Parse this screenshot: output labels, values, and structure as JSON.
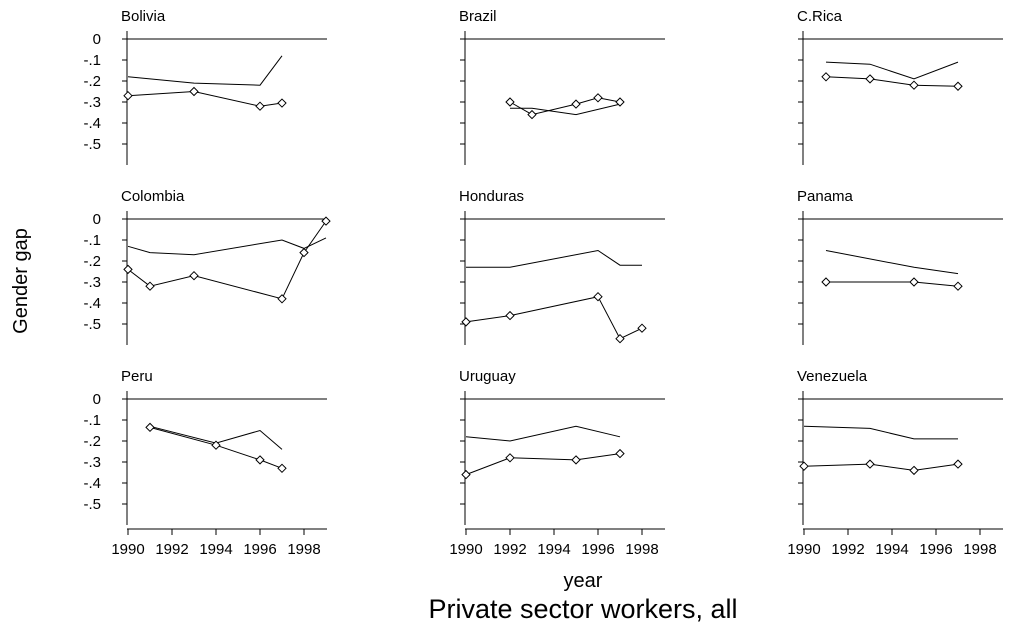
{
  "chart_data": {
    "type": "line",
    "title": "Private sector workers, all",
    "xlabel": "year",
    "ylabel": "Gender gap",
    "xlim": [
      1990,
      1999
    ],
    "ylim": [
      -0.6,
      0.05
    ],
    "x_ticks": [
      1990,
      1992,
      1994,
      1996,
      1998
    ],
    "x_tick_labels": [
      "1990",
      "1992",
      "1994",
      "1996",
      "1998"
    ],
    "y_ticks": [
      0,
      -0.1,
      -0.2,
      -0.3,
      -0.4,
      -0.5
    ],
    "y_tick_labels": [
      "0",
      "-.1",
      "-.2",
      "-.3",
      "-.4",
      "-.5"
    ],
    "reference_line": 0,
    "grid": false,
    "panels": [
      {
        "name": "Bolivia",
        "series": [
          {
            "marker": "none",
            "points": [
              [
                1990,
                -0.18
              ],
              [
                1993,
                -0.21
              ],
              [
                1996,
                -0.22
              ],
              [
                1997,
                -0.08
              ]
            ]
          },
          {
            "marker": "diamond",
            "points": [
              [
                1990,
                -0.27
              ],
              [
                1993,
                -0.25
              ],
              [
                1996,
                -0.32
              ],
              [
                1997,
                -0.305
              ]
            ]
          }
        ]
      },
      {
        "name": "Brazil",
        "series": [
          {
            "marker": "none",
            "points": [
              [
                1992,
                -0.33
              ],
              [
                1993,
                -0.33
              ],
              [
                1995,
                -0.36
              ],
              [
                1997,
                -0.31
              ]
            ]
          },
          {
            "marker": "diamond",
            "points": [
              [
                1992,
                -0.3
              ],
              [
                1993,
                -0.36
              ],
              [
                1995,
                -0.31
              ],
              [
                1996,
                -0.28
              ],
              [
                1997,
                -0.3
              ]
            ]
          }
        ]
      },
      {
        "name": "C.Rica",
        "series": [
          {
            "marker": "none",
            "points": [
              [
                1991,
                -0.11
              ],
              [
                1993,
                -0.12
              ],
              [
                1995,
                -0.19
              ],
              [
                1997,
                -0.11
              ]
            ]
          },
          {
            "marker": "diamond",
            "points": [
              [
                1991,
                -0.18
              ],
              [
                1993,
                -0.19
              ],
              [
                1995,
                -0.22
              ],
              [
                1997,
                -0.225
              ]
            ]
          }
        ]
      },
      {
        "name": "Colombia",
        "series": [
          {
            "marker": "none",
            "points": [
              [
                1990,
                -0.13
              ],
              [
                1991,
                -0.16
              ],
              [
                1993,
                -0.17
              ],
              [
                1997,
                -0.1
              ],
              [
                1998,
                -0.14
              ],
              [
                1999,
                -0.09
              ]
            ]
          },
          {
            "marker": "diamond",
            "points": [
              [
                1990,
                -0.24
              ],
              [
                1991,
                -0.32
              ],
              [
                1993,
                -0.27
              ],
              [
                1997,
                -0.38
              ],
              [
                1998,
                -0.16
              ],
              [
                1999,
                -0.01
              ]
            ]
          }
        ]
      },
      {
        "name": "Honduras",
        "series": [
          {
            "marker": "none",
            "points": [
              [
                1990,
                -0.23
              ],
              [
                1992,
                -0.23
              ],
              [
                1996,
                -0.15
              ],
              [
                1997,
                -0.22
              ],
              [
                1998,
                -0.22
              ]
            ]
          },
          {
            "marker": "diamond",
            "points": [
              [
                1990,
                -0.49
              ],
              [
                1992,
                -0.46
              ],
              [
                1996,
                -0.37
              ],
              [
                1997,
                -0.57
              ],
              [
                1998,
                -0.52
              ]
            ]
          }
        ]
      },
      {
        "name": "Panama",
        "series": [
          {
            "marker": "none",
            "points": [
              [
                1991,
                -0.15
              ],
              [
                1995,
                -0.23
              ],
              [
                1997,
                -0.26
              ]
            ]
          },
          {
            "marker": "diamond",
            "points": [
              [
                1991,
                -0.3
              ],
              [
                1995,
                -0.3
              ],
              [
                1997,
                -0.32
              ]
            ]
          }
        ]
      },
      {
        "name": "Peru",
        "series": [
          {
            "marker": "none",
            "points": [
              [
                1991,
                -0.13
              ],
              [
                1994,
                -0.21
              ],
              [
                1996,
                -0.15
              ],
              [
                1997,
                -0.24
              ]
            ]
          },
          {
            "marker": "diamond",
            "points": [
              [
                1991,
                -0.135
              ],
              [
                1994,
                -0.22
              ],
              [
                1996,
                -0.29
              ],
              [
                1997,
                -0.33
              ]
            ]
          }
        ]
      },
      {
        "name": "Uruguay",
        "series": [
          {
            "marker": "none",
            "points": [
              [
                1990,
                -0.18
              ],
              [
                1992,
                -0.2
              ],
              [
                1995,
                -0.13
              ],
              [
                1997,
                -0.18
              ]
            ]
          },
          {
            "marker": "diamond",
            "points": [
              [
                1990,
                -0.36
              ],
              [
                1992,
                -0.28
              ],
              [
                1995,
                -0.29
              ],
              [
                1997,
                -0.26
              ]
            ]
          }
        ]
      },
      {
        "name": "Venezuela",
        "series": [
          {
            "marker": "none",
            "points": [
              [
                1990,
                -0.13
              ],
              [
                1993,
                -0.14
              ],
              [
                1995,
                -0.19
              ],
              [
                1997,
                -0.19
              ]
            ]
          },
          {
            "marker": "diamond",
            "points": [
              [
                1990,
                -0.32
              ],
              [
                1993,
                -0.31
              ],
              [
                1995,
                -0.34
              ],
              [
                1997,
                -0.31
              ]
            ]
          }
        ]
      }
    ]
  }
}
